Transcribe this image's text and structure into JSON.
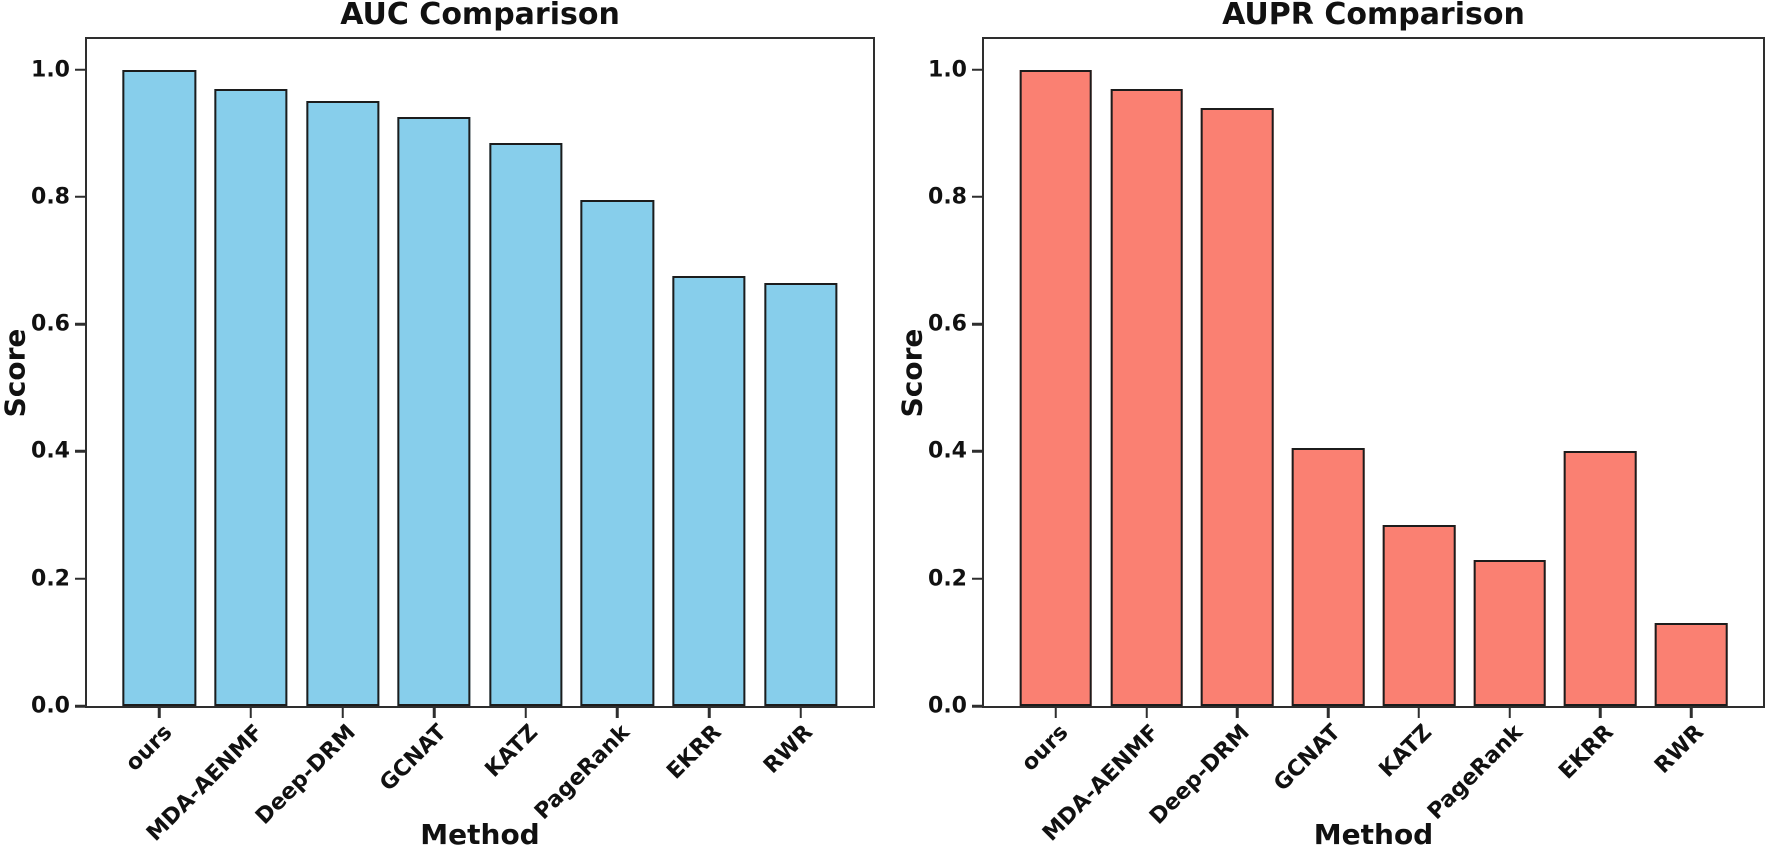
{
  "figure": {
    "background": "#ffffff",
    "text_color": "#111111",
    "spine_color": "#2e2e2e"
  },
  "chart_data": [
    {
      "id": "auc",
      "type": "bar",
      "title": "AUC Comparison",
      "xlabel": "Method",
      "ylabel": "Score",
      "categories": [
        "ours",
        "MDA-AENMF",
        "Deep-DRM",
        "GCNAT",
        "KATZ",
        "PageRank",
        "EKRR",
        "RWR"
      ],
      "values": [
        1.0,
        0.97,
        0.95,
        0.925,
        0.885,
        0.795,
        0.675,
        0.665
      ],
      "bar_color": "#87CEEB",
      "bar_edge_color": "#1c1c1c",
      "yticks": [
        0.0,
        0.2,
        0.4,
        0.6,
        0.8,
        1.0
      ],
      "ytick_labels": [
        "0.0",
        "0.2",
        "0.4",
        "0.6",
        "0.8",
        "1.0"
      ],
      "ylim": [
        0,
        1.048
      ],
      "grid": false,
      "legend_position": "none"
    },
    {
      "id": "aupr",
      "type": "bar",
      "title": "AUPR Comparison",
      "xlabel": "Method",
      "ylabel": "Score",
      "categories": [
        "ours",
        "MDA-AENMF",
        "Deep-DRM",
        "GCNAT",
        "KATZ",
        "PageRank",
        "EKRR",
        "RWR"
      ],
      "values": [
        1.0,
        0.97,
        0.94,
        0.405,
        0.285,
        0.23,
        0.4,
        0.13
      ],
      "bar_color": "#FA8072",
      "bar_edge_color": "#1c1c1c",
      "yticks": [
        0.0,
        0.2,
        0.4,
        0.6,
        0.8,
        1.0
      ],
      "ytick_labels": [
        "0.0",
        "0.2",
        "0.4",
        "0.6",
        "0.8",
        "1.0"
      ],
      "ylim": [
        0,
        1.048
      ],
      "grid": false,
      "legend_position": "none"
    }
  ]
}
